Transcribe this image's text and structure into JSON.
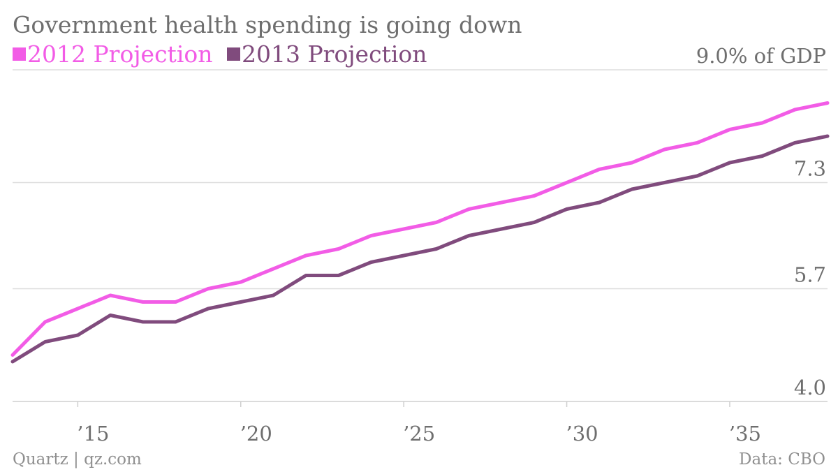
{
  "header": {
    "title": "Government health spending is going down"
  },
  "footer": {
    "source_left": "Quartz | qz.com",
    "source_right": "Data: CBO"
  },
  "colors": {
    "series_2012": "#f25ce6",
    "series_2013": "#804b7d",
    "grid": "#dddddd",
    "text": "#6e6e6e"
  },
  "chart_data": {
    "type": "line",
    "title": "Government health spending is going down",
    "y_unit_label": "% of GDP",
    "ylim": [
      4.0,
      9.0
    ],
    "xlim": [
      2013,
      2038
    ],
    "y_ticks": [
      {
        "value": 4.0,
        "label": "4.0"
      },
      {
        "value": 5.7,
        "label": "5.7"
      },
      {
        "value": 7.3,
        "label": "7.3"
      },
      {
        "value": 9.0,
        "label": "9.0% of GDP"
      }
    ],
    "x_ticks": [
      {
        "value": 2015,
        "label": "’15"
      },
      {
        "value": 2020,
        "label": "’20"
      },
      {
        "value": 2025,
        "label": "’25"
      },
      {
        "value": 2030,
        "label": "’30"
      },
      {
        "value": 2035,
        "label": "’35"
      }
    ],
    "grid": true,
    "legend": "top-left",
    "x": [
      2013,
      2014,
      2015,
      2016,
      2017,
      2018,
      2019,
      2020,
      2021,
      2022,
      2023,
      2024,
      2025,
      2026,
      2027,
      2028,
      2029,
      2030,
      2031,
      2032,
      2033,
      2034,
      2035,
      2036,
      2037,
      2038
    ],
    "series": [
      {
        "name": "2012 Projection",
        "values": [
          4.7,
          5.2,
          5.4,
          5.6,
          5.5,
          5.5,
          5.7,
          5.8,
          6.0,
          6.2,
          6.3,
          6.5,
          6.6,
          6.7,
          6.9,
          7.0,
          7.1,
          7.3,
          7.5,
          7.6,
          7.8,
          7.9,
          8.1,
          8.2,
          8.4,
          8.5
        ]
      },
      {
        "name": "2013 Projection",
        "values": [
          4.6,
          4.9,
          5.0,
          5.3,
          5.2,
          5.2,
          5.4,
          5.5,
          5.6,
          5.9,
          5.9,
          6.1,
          6.2,
          6.3,
          6.5,
          6.6,
          6.7,
          6.9,
          7.0,
          7.2,
          7.3,
          7.4,
          7.6,
          7.7,
          7.9,
          8.0
        ]
      }
    ]
  }
}
